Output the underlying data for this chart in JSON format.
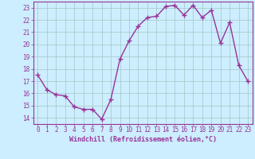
{
  "x": [
    0,
    1,
    2,
    3,
    4,
    5,
    6,
    7,
    8,
    9,
    10,
    11,
    12,
    13,
    14,
    15,
    16,
    17,
    18,
    19,
    20,
    21,
    22,
    23
  ],
  "y": [
    17.5,
    16.3,
    15.9,
    15.8,
    14.9,
    14.7,
    14.7,
    13.9,
    15.5,
    18.8,
    20.3,
    21.5,
    22.2,
    22.3,
    23.1,
    23.2,
    22.4,
    23.2,
    22.2,
    22.8,
    20.1,
    21.8,
    18.3,
    17.0
  ],
  "line_color": "#993399",
  "marker": "+",
  "marker_size": 4,
  "bg_color": "#cceeff",
  "grid_color": "#aacccc",
  "xlabel": "Windchill (Refroidissement éolien,°C)",
  "ylim": [
    13.5,
    23.5
  ],
  "xlim": [
    -0.5,
    23.5
  ],
  "yticks": [
    14,
    15,
    16,
    17,
    18,
    19,
    20,
    21,
    22,
    23
  ],
  "xticks": [
    0,
    1,
    2,
    3,
    4,
    5,
    6,
    7,
    8,
    9,
    10,
    11,
    12,
    13,
    14,
    15,
    16,
    17,
    18,
    19,
    20,
    21,
    22,
    23
  ],
  "xtick_labels": [
    "0",
    "1",
    "2",
    "3",
    "4",
    "5",
    "6",
    "7",
    "8",
    "9",
    "10",
    "11",
    "12",
    "13",
    "14",
    "15",
    "16",
    "17",
    "18",
    "19",
    "20",
    "21",
    "22",
    "23"
  ],
  "line_width": 1.0,
  "tick_color": "#993399",
  "label_color": "#993399",
  "axis_color": "#993399"
}
